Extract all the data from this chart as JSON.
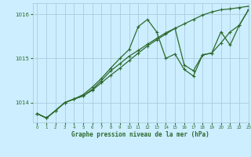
{
  "bg_color": "#cceeff",
  "grid_color": "#aaccdd",
  "line_color": "#2d6a2d",
  "marker_color": "#2d6a2d",
  "title": "Graphe pression niveau de la mer (hPa)",
  "xlim": [
    -0.5,
    23
  ],
  "ylim": [
    1013.55,
    1016.25
  ],
  "yticks": [
    1014,
    1015,
    1016
  ],
  "xticks": [
    0,
    1,
    2,
    3,
    4,
    5,
    6,
    7,
    8,
    9,
    10,
    11,
    12,
    13,
    14,
    15,
    16,
    17,
    18,
    19,
    20,
    21,
    22,
    23
  ],
  "series1_x": [
    0,
    1,
    2,
    3,
    4,
    5,
    6,
    7,
    8,
    9,
    10,
    11,
    12,
    13,
    14,
    15,
    16,
    17,
    18,
    19,
    20,
    21,
    22,
    23
  ],
  "series1_y": [
    1013.75,
    1013.65,
    1013.82,
    1014.0,
    1014.08,
    1014.15,
    1014.28,
    1014.45,
    1014.62,
    1014.78,
    1014.95,
    1015.12,
    1015.28,
    1015.42,
    1015.55,
    1015.68,
    1015.78,
    1015.88,
    1015.98,
    1016.05,
    1016.1,
    1016.12,
    1016.15,
    1016.18
  ],
  "series2_x": [
    0,
    1,
    2,
    3,
    4,
    5,
    6,
    7,
    8,
    9,
    10,
    11,
    12,
    13,
    14,
    15,
    16,
    17,
    18,
    19,
    20,
    21,
    22,
    23
  ],
  "series2_y": [
    1013.75,
    1013.65,
    1013.82,
    1014.0,
    1014.08,
    1014.18,
    1014.35,
    1014.55,
    1014.78,
    1015.0,
    1015.2,
    1015.72,
    1015.88,
    1015.6,
    1015.0,
    1015.1,
    1014.75,
    1014.6,
    1015.08,
    1015.12,
    1015.6,
    1015.3,
    1015.75,
    1016.1
  ],
  "series3_x": [
    0,
    1,
    2,
    3,
    4,
    5,
    6,
    7,
    8,
    9,
    10,
    11,
    12,
    13,
    14,
    15,
    16,
    17,
    18,
    19,
    20,
    21,
    22,
    23
  ],
  "series3_y": [
    1013.75,
    1013.65,
    1013.82,
    1014.0,
    1014.08,
    1014.15,
    1014.3,
    1014.5,
    1014.72,
    1014.88,
    1015.05,
    1015.18,
    1015.32,
    1015.45,
    1015.58,
    1015.68,
    1014.85,
    1014.72,
    1015.08,
    1015.12,
    1015.35,
    1015.6,
    1015.75,
    1016.1
  ],
  "figwidth": 3.2,
  "figheight": 2.0,
  "dpi": 100
}
